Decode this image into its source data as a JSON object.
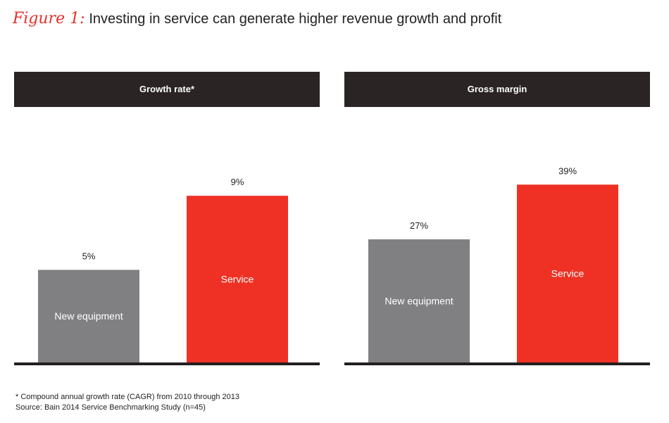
{
  "figure": {
    "label": "Figure 1:",
    "title": "Investing in service can generate higher revenue growth and profit"
  },
  "colors": {
    "equipment": "#808083",
    "service": "#ee3124",
    "header_bg": "#2a2425",
    "axis": "#231f20",
    "accent": "#e8302a"
  },
  "chart_data": [
    {
      "type": "bar",
      "title": "Growth rate*",
      "categories": [
        "New equipment",
        "Service"
      ],
      "values": [
        5,
        9
      ],
      "value_labels": [
        "5%",
        "9%"
      ],
      "unit": "%",
      "ylim": [
        0,
        11.4
      ],
      "xlabel": "",
      "ylabel": "",
      "grid": false
    },
    {
      "type": "bar",
      "title": "Gross margin",
      "categories": [
        "New equipment",
        "Service"
      ],
      "values": [
        27,
        39
      ],
      "value_labels": [
        "27%",
        "39%"
      ],
      "unit": "%",
      "ylim": [
        0,
        46.3
      ],
      "xlabel": "",
      "ylabel": "",
      "grid": false
    }
  ],
  "footnotes": {
    "note": "* Compound annual growth rate (CAGR) from 2010 through 2013",
    "source": "Source: Bain 2014 Service Benchmarking Study (n=45)"
  }
}
